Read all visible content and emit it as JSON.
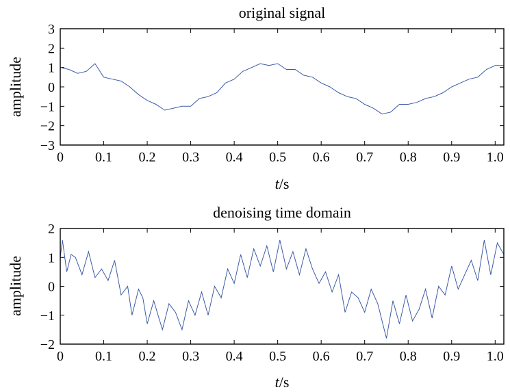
{
  "chart_data": [
    {
      "type": "line",
      "title": "original signal",
      "xlabel_italic": "t",
      "xlabel_rest": "/s",
      "ylabel": "amplitude",
      "xlim": [
        0,
        1.02
      ],
      "ylim": [
        -3,
        3
      ],
      "xticks": [
        0,
        0.1,
        0.2,
        0.3,
        0.4,
        0.5,
        0.6,
        0.7,
        0.8,
        0.9,
        1.0
      ],
      "xtick_labels": [
        "0",
        "0.1",
        "0.2",
        "0.3",
        "0.4",
        "0.5",
        "0.6",
        "0.7",
        "0.8",
        "0.9",
        "1.0"
      ],
      "yticks": [
        3,
        2,
        1,
        0,
        -1,
        -2,
        -3
      ],
      "ytick_labels": [
        "3",
        "2",
        "1",
        "0",
        "−1",
        "−2",
        "−3"
      ],
      "line_color": "#3b5aa8",
      "grid": false,
      "series": [
        {
          "x": [
            0,
            0.02,
            0.04,
            0.06,
            0.08,
            0.1,
            0.12,
            0.14,
            0.16,
            0.18,
            0.2,
            0.22,
            0.24,
            0.26,
            0.28,
            0.3,
            0.32,
            0.34,
            0.36,
            0.38,
            0.4,
            0.42,
            0.44,
            0.46,
            0.48,
            0.5,
            0.52,
            0.54,
            0.56,
            0.58,
            0.6,
            0.62,
            0.64,
            0.66,
            0.68,
            0.7,
            0.72,
            0.74,
            0.76,
            0.78,
            0.8,
            0.82,
            0.84,
            0.86,
            0.88,
            0.9,
            0.92,
            0.94,
            0.96,
            0.98,
            1.0,
            1.02
          ],
          "y": [
            1.0,
            0.9,
            0.7,
            0.8,
            1.2,
            0.5,
            0.4,
            0.3,
            0.0,
            -0.4,
            -0.7,
            -0.9,
            -1.2,
            -1.1,
            -1.0,
            -1.0,
            -0.6,
            -0.5,
            -0.3,
            0.2,
            0.4,
            0.8,
            1.0,
            1.2,
            1.1,
            1.2,
            0.9,
            0.9,
            0.6,
            0.5,
            0.2,
            0.0,
            -0.3,
            -0.5,
            -0.6,
            -0.9,
            -1.1,
            -1.4,
            -1.3,
            -0.9,
            -0.9,
            -0.8,
            -0.6,
            -0.5,
            -0.3,
            0.0,
            0.2,
            0.4,
            0.5,
            0.9,
            1.1,
            1.1
          ]
        }
      ]
    },
    {
      "type": "line",
      "title": "denoising time domain",
      "xlabel_italic": "t",
      "xlabel_rest": "/s",
      "ylabel": "amplitude",
      "xlim": [
        0,
        1.02
      ],
      "ylim": [
        -2,
        2
      ],
      "xticks": [
        0,
        0.1,
        0.2,
        0.3,
        0.4,
        0.5,
        0.6,
        0.7,
        0.8,
        0.9,
        1.0
      ],
      "xtick_labels": [
        "0",
        "0.1",
        "0.2",
        "0.3",
        "0.4",
        "0.5",
        "0.6",
        "0.7",
        "0.8",
        "0.9",
        "1.0"
      ],
      "yticks": [
        2,
        1,
        0,
        -1,
        -2
      ],
      "ytick_labels": [
        "2",
        "1",
        "0",
        "−1",
        "−2"
      ],
      "line_color": "#3b5aa8",
      "grid": false,
      "series": [
        {
          "x": [
            0,
            0.005,
            0.015,
            0.025,
            0.035,
            0.05,
            0.065,
            0.08,
            0.095,
            0.11,
            0.125,
            0.14,
            0.155,
            0.165,
            0.18,
            0.19,
            0.2,
            0.215,
            0.225,
            0.235,
            0.25,
            0.265,
            0.28,
            0.295,
            0.31,
            0.325,
            0.34,
            0.355,
            0.37,
            0.385,
            0.4,
            0.415,
            0.43,
            0.445,
            0.46,
            0.475,
            0.49,
            0.505,
            0.52,
            0.535,
            0.55,
            0.565,
            0.58,
            0.595,
            0.61,
            0.625,
            0.64,
            0.655,
            0.67,
            0.685,
            0.7,
            0.715,
            0.73,
            0.75,
            0.765,
            0.78,
            0.795,
            0.81,
            0.825,
            0.84,
            0.855,
            0.87,
            0.885,
            0.9,
            0.915,
            0.93,
            0.945,
            0.96,
            0.975,
            0.99,
            1.005,
            1.02
          ],
          "y": [
            1.0,
            1.6,
            0.5,
            1.1,
            1.0,
            0.4,
            1.2,
            0.3,
            0.6,
            0.2,
            0.9,
            -0.3,
            0.0,
            -1.0,
            -0.1,
            -0.4,
            -1.3,
            -0.5,
            -1.0,
            -1.5,
            -0.6,
            -0.9,
            -1.5,
            -0.5,
            -1.0,
            -0.2,
            -1.0,
            0.0,
            -0.4,
            0.6,
            0.1,
            1.1,
            0.3,
            1.3,
            0.7,
            1.4,
            0.5,
            1.6,
            0.6,
            1.2,
            0.4,
            1.3,
            0.6,
            0.1,
            0.5,
            -0.2,
            0.4,
            -0.9,
            -0.2,
            -0.4,
            -0.9,
            -0.1,
            -0.6,
            -1.8,
            -0.5,
            -1.3,
            -0.3,
            -1.2,
            -0.8,
            -0.1,
            -1.1,
            0.0,
            -0.3,
            0.7,
            -0.1,
            0.4,
            0.9,
            0.2,
            1.6,
            0.4,
            1.5,
            1.1
          ]
        }
      ]
    }
  ]
}
